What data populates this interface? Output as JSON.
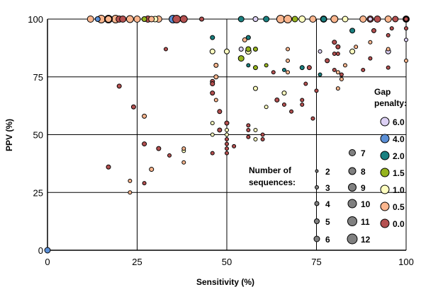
{
  "chart_data": {
    "type": "scatter",
    "xlabel": "Sensitivity (%)",
    "ylabel": "PPV (%)",
    "xlim": [
      0,
      100
    ],
    "ylim": [
      0,
      100
    ],
    "x_ticks": [
      "0",
      "25",
      "50",
      "75",
      "100"
    ],
    "y_ticks": [
      "0",
      "25",
      "50",
      "75",
      "100"
    ],
    "grid": true,
    "size_legend": {
      "title": [
        "Number of",
        "sequences:"
      ],
      "entries": [
        "2",
        "3",
        "4",
        "5",
        "6",
        "7",
        "8",
        "9",
        "10",
        "11",
        "12"
      ]
    },
    "color_legend": {
      "title": [
        "Gap",
        "penalty:"
      ],
      "entries": [
        {
          "label": "6.0",
          "color": "#dcd0f4"
        },
        {
          "label": "4.0",
          "color": "#5b8fd6"
        },
        {
          "label": "2.0",
          "color": "#1a8080"
        },
        {
          "label": "1.5",
          "color": "#96b41e"
        },
        {
          "label": "1.0",
          "color": "#ffffc0"
        },
        {
          "label": "0.5",
          "color": "#fbb68e"
        },
        {
          "label": "0.0",
          "color": "#b45050"
        }
      ]
    },
    "series": [
      {
        "name": "6.0",
        "color": "#dcd0f4",
        "points": [
          [
            54,
            87,
            4
          ],
          [
            76,
            86,
            3
          ],
          [
            95,
            86,
            5
          ],
          [
            100,
            91,
            3
          ],
          [
            58,
            100,
            5
          ],
          [
            90,
            100,
            4
          ],
          [
            100,
            100,
            4
          ]
        ]
      },
      {
        "name": "4.0",
        "color": "#5b8fd6",
        "points": [
          [
            0,
            0,
            6
          ],
          [
            35,
            100,
            9
          ],
          [
            14,
            100,
            5
          ]
        ]
      },
      {
        "name": "2.0",
        "color": "#1a8080",
        "points": [
          [
            46,
            92,
            4
          ],
          [
            56,
            92,
            4
          ],
          [
            56,
            80,
            3
          ],
          [
            66,
            78,
            3
          ],
          [
            71,
            79,
            4
          ],
          [
            76,
            76,
            3
          ],
          [
            85,
            95,
            5
          ],
          [
            54,
            100,
            6
          ],
          [
            61,
            100,
            6
          ],
          [
            77,
            100,
            6
          ],
          [
            100,
            100,
            7
          ]
        ]
      },
      {
        "name": "1.5",
        "color": "#96b41e",
        "points": [
          [
            54,
            83,
            6
          ],
          [
            56,
            87,
            5
          ],
          [
            58,
            79,
            4
          ],
          [
            58,
            87,
            4
          ],
          [
            61,
            80,
            3
          ],
          [
            27,
            100,
            5
          ],
          [
            69,
            100,
            6
          ]
        ]
      },
      {
        "name": "1.0",
        "color": "#ffffc0",
        "points": [
          [
            46,
            86,
            5
          ],
          [
            50,
            86,
            5
          ],
          [
            56,
            86,
            6
          ],
          [
            58,
            70,
            4
          ],
          [
            61,
            62,
            3
          ],
          [
            46,
            55,
            3
          ],
          [
            46,
            50,
            3
          ],
          [
            50,
            52,
            3
          ],
          [
            50,
            50,
            3
          ],
          [
            58,
            52,
            3
          ],
          [
            58,
            48,
            3
          ],
          [
            66,
            68,
            4
          ],
          [
            38,
            43,
            3
          ],
          [
            85,
            86,
            5
          ],
          [
            30,
            100,
            6
          ],
          [
            71,
            100,
            7
          ],
          [
            77,
            100,
            7
          ],
          [
            83,
            100,
            6
          ]
        ]
      },
      {
        "name": "0.5",
        "color": "#fbb68e",
        "points": [
          [
            12,
            100,
            7
          ],
          [
            15,
            100,
            9
          ],
          [
            17,
            100,
            7
          ],
          [
            19,
            100,
            9
          ],
          [
            23,
            100,
            8
          ],
          [
            25,
            100,
            7
          ],
          [
            29,
            100,
            6
          ],
          [
            31,
            100,
            7
          ],
          [
            55,
            91,
            4
          ],
          [
            47,
            80,
            4
          ],
          [
            47,
            75,
            4
          ],
          [
            67,
            87,
            3
          ],
          [
            67,
            82,
            3
          ],
          [
            67,
            77,
            3
          ],
          [
            81,
            77,
            3
          ],
          [
            82,
            74,
            3
          ],
          [
            81,
            70,
            3
          ],
          [
            83,
            80,
            3
          ],
          [
            86,
            88,
            3
          ],
          [
            90,
            90,
            3
          ],
          [
            95,
            87,
            3
          ],
          [
            100,
            82,
            3
          ],
          [
            27,
            58,
            4
          ],
          [
            29,
            35,
            4
          ],
          [
            23,
            30,
            3
          ],
          [
            23,
            25,
            3
          ],
          [
            38,
            44,
            3
          ],
          [
            38,
            38,
            3
          ],
          [
            47,
            65,
            3
          ],
          [
            65,
            100,
            9
          ],
          [
            67,
            100,
            9
          ],
          [
            74,
            100,
            7
          ],
          [
            80,
            100,
            8
          ],
          [
            88,
            100,
            7
          ],
          [
            95,
            100,
            7
          ]
        ]
      },
      {
        "name": "0.0",
        "color": "#b45050",
        "points": [
          [
            17,
            100,
            9
          ],
          [
            20,
            100,
            7
          ],
          [
            21,
            100,
            7
          ],
          [
            28,
            100,
            7
          ],
          [
            36,
            100,
            9
          ],
          [
            38,
            100,
            8
          ],
          [
            43,
            100,
            4
          ],
          [
            20,
            71,
            4
          ],
          [
            24,
            62,
            4
          ],
          [
            27,
            46,
            4
          ],
          [
            17,
            36,
            4
          ],
          [
            34,
            41,
            3
          ],
          [
            31,
            44,
            4
          ],
          [
            27,
            29,
            3
          ],
          [
            33,
            87,
            3
          ],
          [
            46,
            73,
            4
          ],
          [
            46,
            72,
            4
          ],
          [
            46,
            68,
            4
          ],
          [
            46,
            42,
            3
          ],
          [
            48,
            60,
            4
          ],
          [
            48,
            52,
            4
          ],
          [
            50,
            55,
            4
          ],
          [
            50,
            48,
            3
          ],
          [
            50,
            46,
            3
          ],
          [
            50,
            44,
            3
          ],
          [
            50,
            42,
            3
          ],
          [
            52,
            45,
            3
          ],
          [
            56,
            54,
            3
          ],
          [
            56,
            52,
            3
          ],
          [
            56,
            49,
            3
          ],
          [
            60,
            50,
            3
          ],
          [
            60,
            48,
            3
          ],
          [
            63,
            77,
            3
          ],
          [
            64,
            65,
            4
          ],
          [
            66,
            63,
            3
          ],
          [
            68,
            60,
            3
          ],
          [
            71,
            63,
            3
          ],
          [
            71,
            65,
            3
          ],
          [
            72,
            72,
            3
          ],
          [
            73,
            79,
            4
          ],
          [
            75,
            69,
            3
          ],
          [
            74,
            57,
            3
          ],
          [
            78,
            82,
            4
          ],
          [
            80,
            85,
            3
          ],
          [
            80,
            90,
            4
          ],
          [
            81,
            88,
            4
          ],
          [
            80,
            78,
            3
          ],
          [
            82,
            76,
            3
          ],
          [
            81,
            85,
            3
          ],
          [
            88,
            78,
            3
          ],
          [
            90,
            83,
            3
          ],
          [
            91,
            95,
            4
          ],
          [
            95,
            79,
            3
          ],
          [
            95,
            93,
            3
          ],
          [
            96,
            96,
            3
          ],
          [
            100,
            100,
            4
          ],
          [
            100,
            96,
            3
          ],
          [
            90,
            100,
            7
          ],
          [
            92,
            100,
            7
          ],
          [
            97,
            100,
            6
          ],
          [
            100,
            100,
            6
          ]
        ]
      }
    ]
  }
}
